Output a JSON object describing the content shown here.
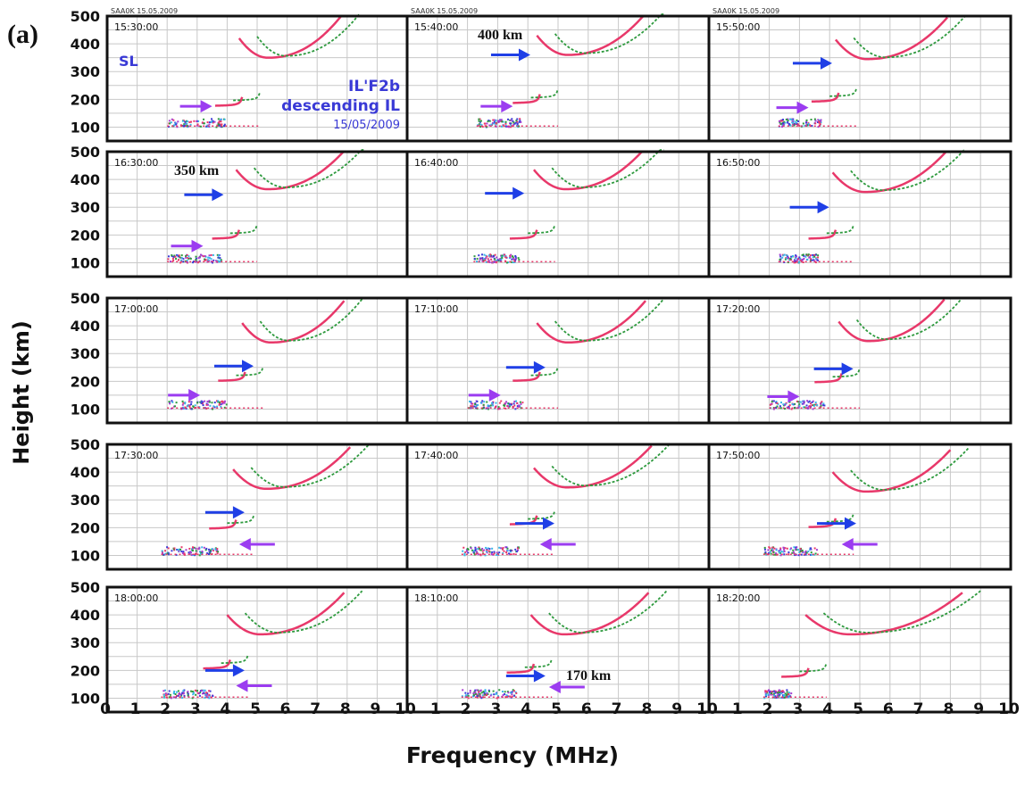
{
  "figure": {
    "panel_label": "(a)",
    "ylabel": "Height (km)",
    "xlabel": "Frequency (MHz)"
  },
  "colors": {
    "trace_o": "#e8386a",
    "trace_x": "#2e9a3e",
    "arrow_blue": "#1f3fe6",
    "arrow_purple": "#9b3cf0",
    "note_blue": "#3a3ad6",
    "frame": "#111111",
    "grid": "#c8c8c8"
  },
  "chart_data": {
    "type": "scatter",
    "description_type": "ionogram",
    "xlim": [
      0,
      10
    ],
    "ylim": [
      50,
      500
    ],
    "grid": true,
    "y_ticks": [
      100,
      200,
      300,
      400,
      500
    ],
    "x_ticks": [
      0,
      1,
      2,
      3,
      4,
      5,
      6,
      7,
      8,
      9,
      10
    ],
    "x_tick_labels_row": [
      "0",
      "1",
      "2",
      "3",
      "4",
      "5",
      "6",
      "7",
      "8",
      "9",
      "10",
      "1",
      "2",
      "3",
      "4",
      "5",
      "6",
      "7",
      "8",
      "9",
      "10",
      "1",
      "2",
      "3",
      "4",
      "5",
      "6",
      "7",
      "8",
      "9",
      "10"
    ],
    "header_labels": [
      "SAA0K 15.05.2009",
      "SAA0K 15.05.2009",
      "SAA0K 15.05.2009"
    ],
    "annotations": {
      "sl": "SL",
      "il_title": "IL'F2b",
      "il_sub": "descending IL",
      "date": "15/05/2009",
      "h400": "400 km",
      "h350": "350 km",
      "h170": "170 km"
    },
    "panels": [
      {
        "time": "15:30:00",
        "fmin": 2.0,
        "ilF": 4.5,
        "ilH": 175,
        "fmax": 7.8,
        "minH": 350,
        "blue": null,
        "purple": [
          3.5,
          175
        ]
      },
      {
        "time": "15:40:00",
        "fmin": 2.3,
        "ilF": 4.4,
        "ilH": 185,
        "fmax": 7.9,
        "minH": 360,
        "blue": [
          4.2,
          360
        ],
        "purple": [
          3.5,
          175
        ]
      },
      {
        "time": "15:50:00",
        "fmin": 2.3,
        "ilF": 4.3,
        "ilH": 190,
        "fmax": 7.9,
        "minH": 345,
        "blue": [
          4.2,
          330
        ],
        "purple": [
          3.3,
          170
        ]
      },
      {
        "time": "16:30:00",
        "fmin": 2.0,
        "ilF": 4.4,
        "ilH": 185,
        "fmax": 8.0,
        "minH": 365,
        "blue": [
          4.0,
          345
        ],
        "purple": [
          3.2,
          160
        ]
      },
      {
        "time": "16:40:00",
        "fmin": 2.2,
        "ilF": 4.3,
        "ilH": 185,
        "fmax": 7.9,
        "minH": 365,
        "blue": [
          4.0,
          350
        ],
        "purple": null
      },
      {
        "time": "16:50:00",
        "fmin": 2.3,
        "ilF": 4.2,
        "ilH": 185,
        "fmax": 7.9,
        "minH": 355,
        "blue": [
          4.1,
          300
        ],
        "purple": null
      },
      {
        "time": "17:00:00",
        "fmin": 2.0,
        "ilF": 4.6,
        "ilH": 200,
        "fmax": 7.9,
        "minH": 340,
        "blue": [
          5.0,
          255
        ],
        "purple": [
          3.1,
          150
        ]
      },
      {
        "time": "17:10:00",
        "fmin": 2.0,
        "ilF": 4.4,
        "ilH": 200,
        "fmax": 7.9,
        "minH": 340,
        "blue": [
          4.7,
          250
        ],
        "purple": [
          3.1,
          150
        ]
      },
      {
        "time": "17:20:00",
        "fmin": 2.0,
        "ilF": 4.4,
        "ilH": 195,
        "fmax": 7.8,
        "minH": 345,
        "blue": [
          4.9,
          245
        ],
        "purple": [
          3.0,
          145
        ]
      },
      {
        "time": "17:30:00",
        "fmin": 1.8,
        "ilF": 4.3,
        "ilH": 195,
        "fmax": 8.1,
        "minH": 340,
        "blue": [
          4.7,
          255
        ],
        "purple": [
          4.4,
          140
        ]
      },
      {
        "time": "17:40:00",
        "fmin": 1.8,
        "ilF": 4.3,
        "ilH": 210,
        "fmax": 8.1,
        "minH": 345,
        "blue": [
          5.0,
          215
        ],
        "purple": [
          4.4,
          140
        ]
      },
      {
        "time": "17:50:00",
        "fmin": 1.8,
        "ilF": 4.2,
        "ilH": 200,
        "fmax": 8.0,
        "minH": 330,
        "blue": [
          5.0,
          215
        ],
        "purple": [
          4.4,
          140
        ]
      },
      {
        "time": "18:00:00",
        "fmin": 1.8,
        "ilF": 4.1,
        "ilH": 205,
        "fmax": 7.9,
        "minH": 330,
        "blue": [
          4.7,
          200
        ],
        "purple": [
          4.3,
          145
        ]
      },
      {
        "time": "18:10:00",
        "fmin": 1.8,
        "ilF": 4.2,
        "ilH": 190,
        "fmax": 8.0,
        "minH": 330,
        "blue": [
          4.7,
          180
        ],
        "purple": [
          4.7,
          140
        ]
      },
      {
        "time": "18:20:00",
        "fmin": 1.8,
        "ilF": 3.3,
        "ilH": 175,
        "fmax": 8.4,
        "minH": 330,
        "blue": null,
        "purple": null
      }
    ]
  }
}
